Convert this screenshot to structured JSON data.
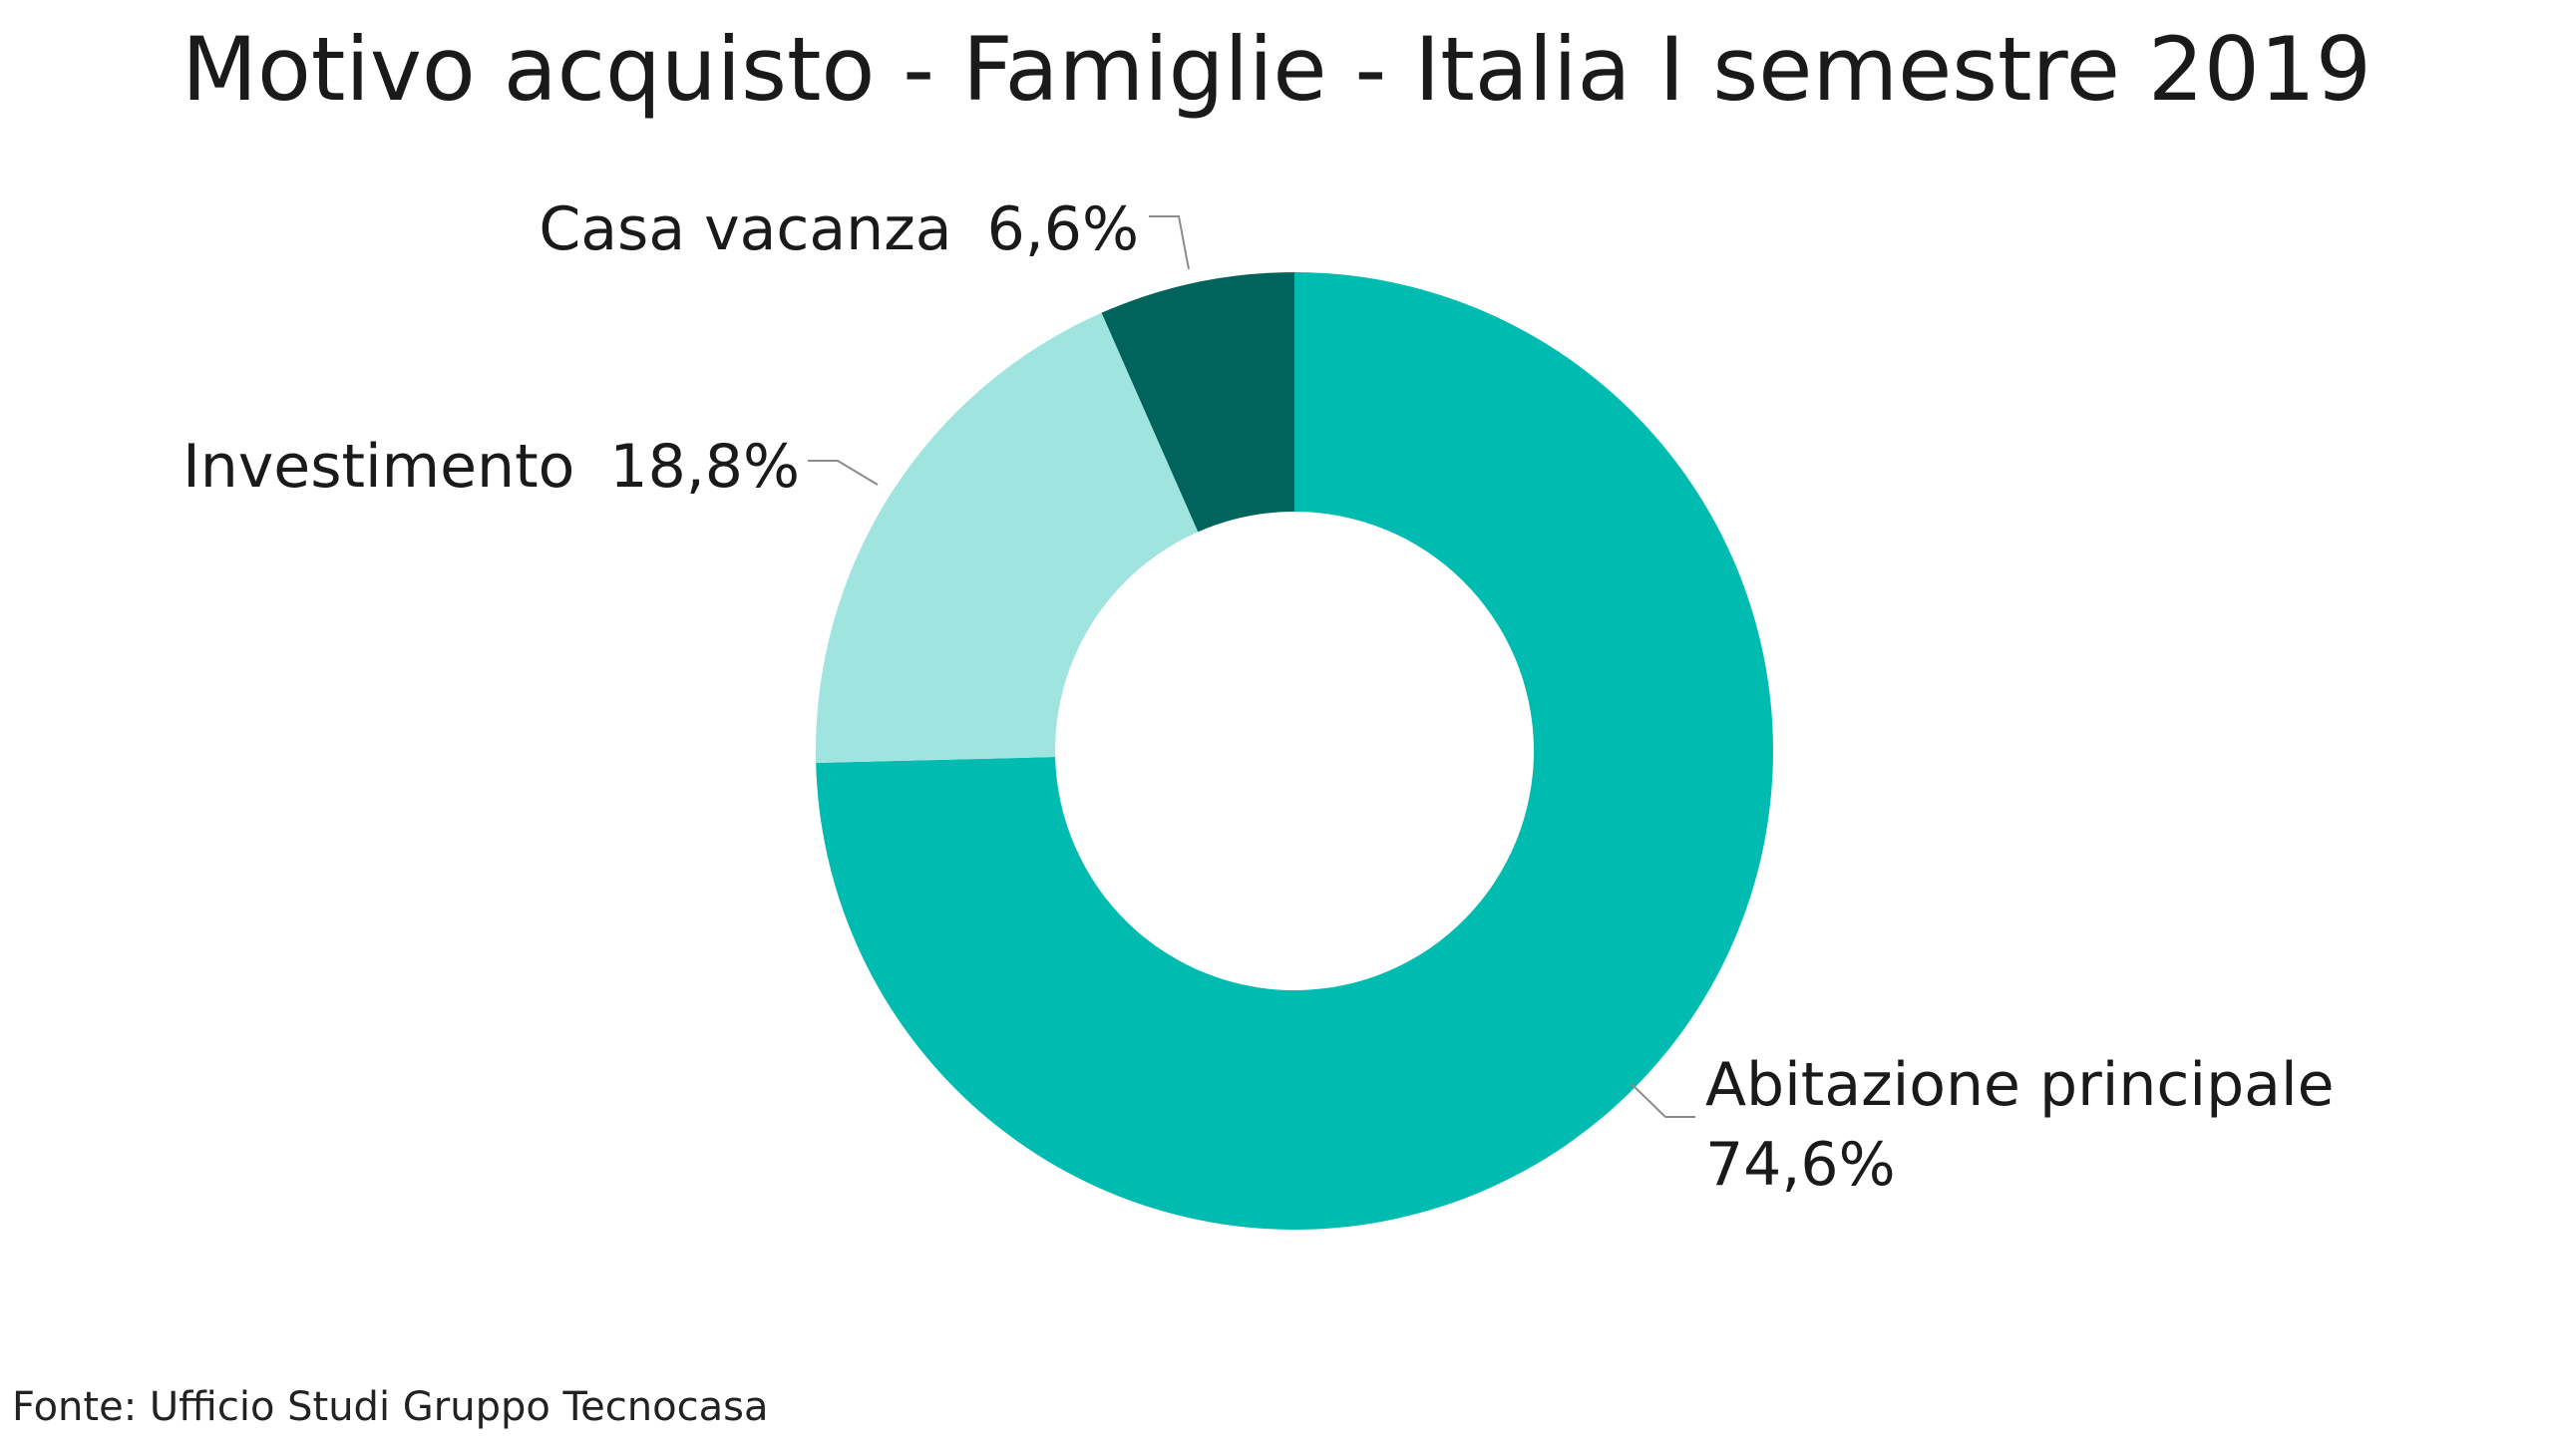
{
  "title": "Motivo acquisto - Famiglie - Italia I semestre 2019",
  "source": "Fonte: Ufficio Studi Gruppo Tecnocasa",
  "chart_data": {
    "type": "pie",
    "title": "Motivo acquisto - Famiglie - Italia I semestre 2019",
    "hole": "donut",
    "slices": [
      {
        "label": "Abitazione principale",
        "value_text": "74,6%",
        "value": 74.6,
        "color": "#00bbb0"
      },
      {
        "label": "Investimento",
        "value_text": "18,8%",
        "value": 18.8,
        "color": "#a0e4df"
      },
      {
        "label": "Casa vacanza",
        "value_text": "6,6%",
        "value": 6.6,
        "color": "#00645d"
      }
    ]
  }
}
